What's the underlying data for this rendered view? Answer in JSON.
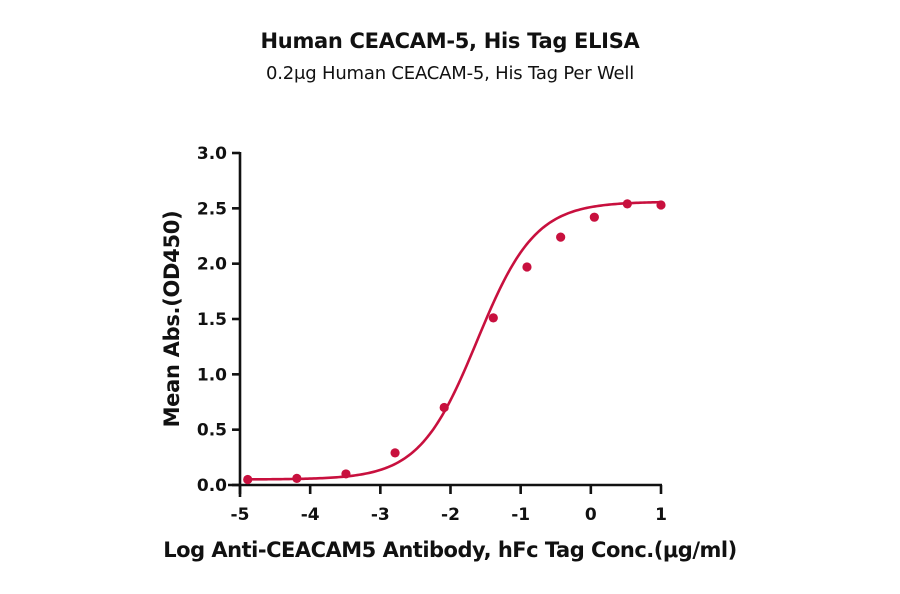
{
  "chart_data": {
    "type": "line",
    "title": "Human CEACAM-5, His Tag ELISA",
    "subtitle": "0.2μg Human CEACAM-5, His Tag Per Well",
    "xlabel": "Log Anti-CEACAM5 Antibody, hFc Tag Conc.(μg/ml)",
    "ylabel": "Mean Abs.(OD450)",
    "xlim": [
      -5,
      1
    ],
    "ylim": [
      0,
      3.0
    ],
    "xticks": [
      -5,
      -4,
      -3,
      -2,
      -1,
      0,
      1
    ],
    "xtick_labels": [
      "-5",
      "-4",
      "-3",
      "-2",
      "-1",
      "0",
      "1"
    ],
    "yticks": [
      0,
      0.5,
      1.0,
      1.5,
      2.0,
      2.5,
      3.0
    ],
    "ytick_labels": [
      "0.0",
      "0.5",
      "1.0",
      "1.5",
      "2.0",
      "2.5",
      "3.0"
    ],
    "grid": false,
    "legend": null,
    "series": [
      {
        "name": "Human CEACAM-5, His Tag",
        "color": "#C8103E",
        "marker": "circle",
        "fit": "4PL sigmoidal curve",
        "x": [
          -4.89,
          -4.19,
          -3.49,
          -2.79,
          -2.09,
          -1.39,
          -0.91,
          -0.43,
          0.05,
          0.52,
          1.0
        ],
        "y": [
          0.05,
          0.06,
          0.1,
          0.29,
          0.7,
          1.51,
          1.97,
          2.24,
          2.42,
          2.54,
          2.53
        ]
      }
    ],
    "fit_params": {
      "bottom": 0.05,
      "top": 2.56,
      "logEC50": -1.62,
      "hill": 1.05
    }
  }
}
